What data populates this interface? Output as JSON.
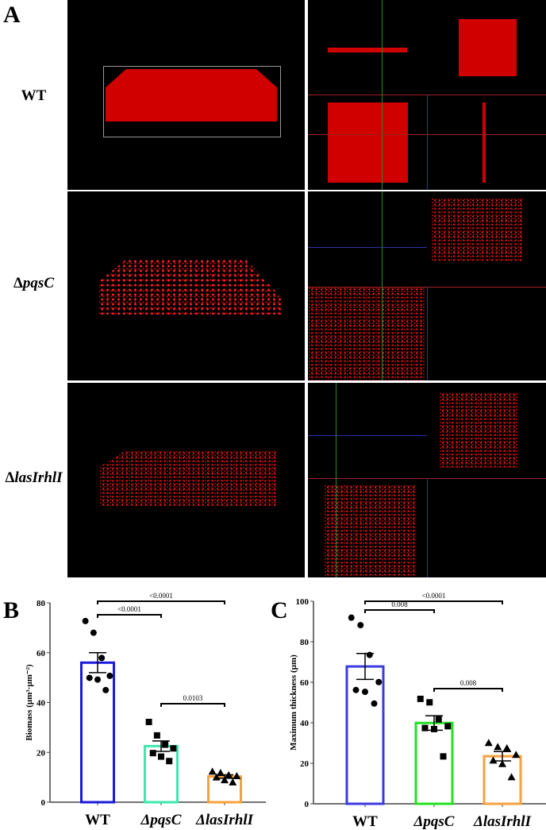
{
  "figure": {
    "panel_a_label": "A",
    "panel_b_label": "B",
    "panel_c_label": "C",
    "strains": [
      {
        "prefix": "",
        "name": "WT"
      },
      {
        "prefix": "Δ",
        "name": "pqsC"
      },
      {
        "prefix": "Δ",
        "name": "lasIrhlI"
      }
    ]
  },
  "chart_data": [
    {
      "type": "bar",
      "panel": "B",
      "ylabel": "Biomass (µm³·µm⁻²)",
      "ylim": [
        0,
        80
      ],
      "yticks": [
        0,
        20,
        40,
        60,
        80
      ],
      "categories": [
        "WT",
        "ΔpqsC",
        "ΔlasIrhlI"
      ],
      "values": [
        56,
        22.5,
        10.3
      ],
      "sem": [
        4,
        2.1,
        0.7
      ],
      "points": [
        [
          72.7,
          68,
          57.9,
          50.7,
          49.9,
          49.2,
          45
        ],
        [
          32.2,
          26.8,
          23.1,
          21.6,
          19.7,
          18.3,
          16.5
        ],
        [
          12.3,
          11.8,
          10.9,
          10.5,
          10,
          8.9,
          8
        ]
      ],
      "markers": [
        "circle",
        "square",
        "triangle"
      ],
      "bar_colors": [
        "#1a1adb",
        "#3de8b0",
        "#f5a23c"
      ],
      "comparisons": [
        {
          "from": 0,
          "to": 2,
          "label": "<0.0001"
        },
        {
          "from": 0,
          "to": 1,
          "label": "<0.0001"
        },
        {
          "from": 1,
          "to": 2,
          "label": "0.0103"
        }
      ]
    },
    {
      "type": "bar",
      "panel": "C",
      "ylabel": "Maximum thickness (µm)",
      "ylim": [
        0,
        100
      ],
      "yticks": [
        0,
        20,
        40,
        60,
        80,
        100
      ],
      "categories": [
        "WT",
        "ΔpqsC",
        "ΔlasIrhlI"
      ],
      "values": [
        67.8,
        39.9,
        23.5
      ],
      "sem": [
        6.4,
        3.6,
        2.3
      ],
      "points": [
        [
          91.9,
          88.2,
          73.5,
          60.1,
          56.2,
          55.3,
          49.5
        ],
        [
          51.8,
          50.1,
          41.7,
          38.3,
          37.4,
          36.9,
          23.4
        ],
        [
          30.1,
          28.1,
          27.5,
          24.2,
          21.4,
          19.7,
          13.2
        ]
      ],
      "markers": [
        "circle",
        "square",
        "triangle"
      ],
      "bar_colors": [
        "#3a3ae0",
        "#22e022",
        "#f5a23c"
      ],
      "comparisons": [
        {
          "from": 0,
          "to": 2,
          "label": "<0.0001"
        },
        {
          "from": 0,
          "to": 1,
          "label": "0.008"
        },
        {
          "from": 1,
          "to": 2,
          "label": "0.008"
        }
      ]
    }
  ]
}
